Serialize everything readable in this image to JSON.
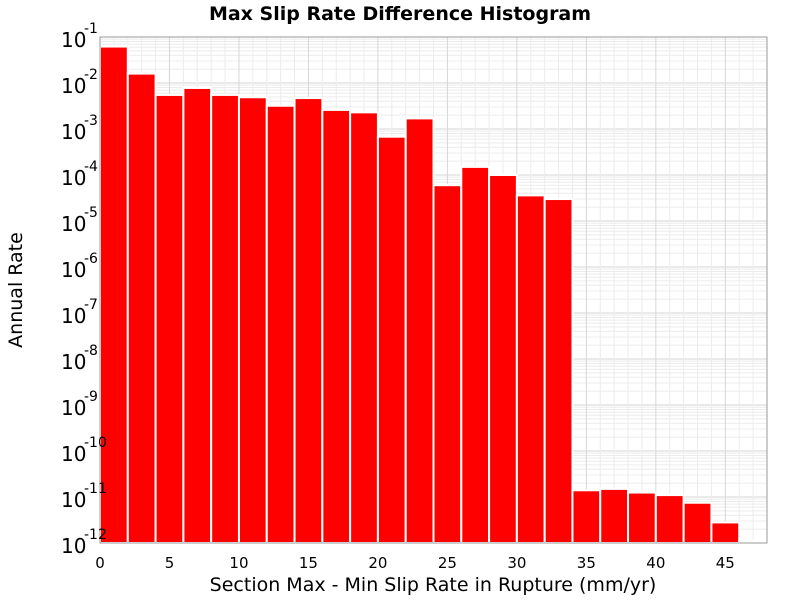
{
  "chart_data": {
    "type": "bar",
    "title": "Max Slip Rate Difference Histogram",
    "xlabel": "Section Max - Min Slip Rate in Rupture (mm/yr)",
    "ylabel": "Annual Rate",
    "xlim": [
      0,
      48
    ],
    "ylim": [
      1e-12,
      0.1
    ],
    "yscale": "log",
    "grid": true,
    "legend": "none",
    "bar_color": "#ff0000",
    "bar_width": 2,
    "x_ticks": [
      "0",
      "5",
      "10",
      "15",
      "20",
      "25",
      "30",
      "35",
      "40",
      "45"
    ],
    "y_ticks": [
      {
        "base": "10",
        "exp": "-1"
      },
      {
        "base": "10",
        "exp": "-2"
      },
      {
        "base": "10",
        "exp": "-3"
      },
      {
        "base": "10",
        "exp": "-4"
      },
      {
        "base": "10",
        "exp": "-5"
      },
      {
        "base": "10",
        "exp": "-6"
      },
      {
        "base": "10",
        "exp": "-7"
      },
      {
        "base": "10",
        "exp": "-8"
      },
      {
        "base": "10",
        "exp": "-9"
      },
      {
        "base": "10",
        "exp": "-10"
      },
      {
        "base": "10",
        "exp": "-11"
      },
      {
        "base": "10",
        "exp": "-12"
      }
    ],
    "x": [
      1,
      3,
      5,
      7,
      9,
      11,
      13,
      15,
      17,
      19,
      21,
      23,
      25,
      27,
      29,
      31,
      33,
      35,
      37,
      39,
      41,
      43,
      45,
      47
    ],
    "values": [
      0.062,
      0.016,
      0.0055,
      0.0078,
      0.0055,
      0.0049,
      0.0032,
      0.0047,
      0.0026,
      0.0023,
      0.00068,
      0.0017,
      6e-05,
      0.00015,
      0.0001,
      3.6e-05,
      3e-05,
      1.4e-11,
      1.5e-11,
      1.25e-11,
      1.1e-11,
      7.5e-12,
      2.8e-12,
      1.1e-12
    ]
  }
}
